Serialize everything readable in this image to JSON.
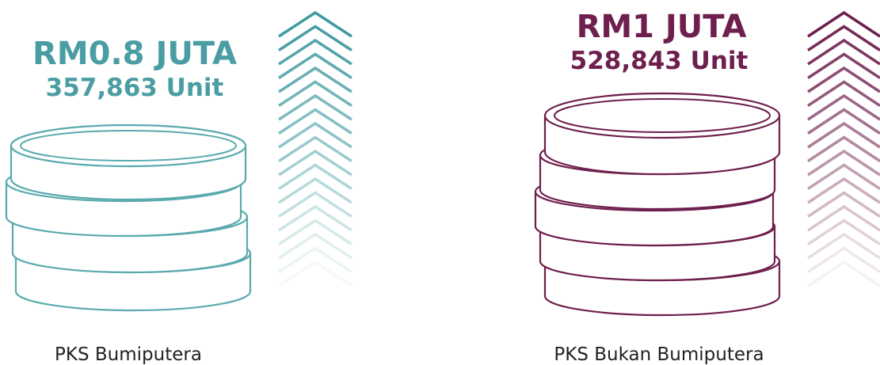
{
  "panels": [
    {
      "amount": "RM0.8 JUTA",
      "units": "357,863 Unit",
      "label": "PKS Bumiputera"
    },
    {
      "amount": "RM1 JUTA",
      "units": "528,843 Unit",
      "label": "PKS Bukan Bumiputera"
    }
  ]
}
